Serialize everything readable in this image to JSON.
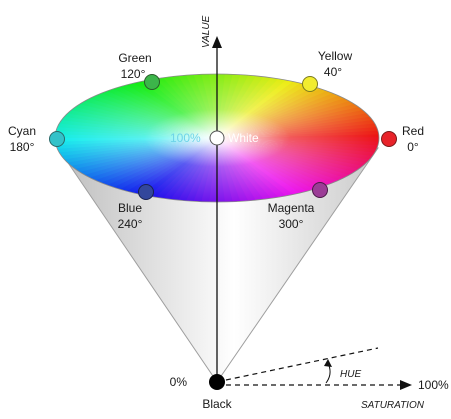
{
  "axes": {
    "value": "VALUE",
    "hue": "HUE",
    "saturation": "SATURATION",
    "saturation_max": "100%",
    "value_min": "0%"
  },
  "center": {
    "percent": "100%",
    "name": "White",
    "color": "#ffffff"
  },
  "apex": {
    "name": "Black",
    "color": "#000000"
  },
  "hues": [
    {
      "name": "Green",
      "degree": "120°",
      "hue": 120,
      "color": "#3cb54a"
    },
    {
      "name": "Yellow",
      "degree": "40°",
      "hue": 40,
      "color": "#f2ec2f"
    },
    {
      "name": "Cyan",
      "degree": "180°",
      "hue": 180,
      "color": "#33c2c9"
    },
    {
      "name": "Red",
      "degree": "0°",
      "hue": 0,
      "color": "#e8232a"
    },
    {
      "name": "Blue",
      "degree": "240°",
      "hue": 240,
      "color": "#33479c"
    },
    {
      "name": "Magenta",
      "degree": "300°",
      "hue": 300,
      "color": "#9b3d96"
    }
  ]
}
